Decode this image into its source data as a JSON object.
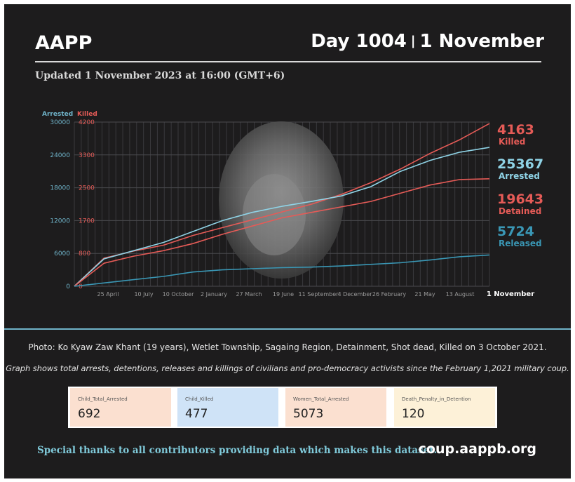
{
  "header": {
    "org": "AAPP",
    "day_label": "Day 1004",
    "separator": "|",
    "date_label": "1 November",
    "updated": "Updated 1 November 2023 at 16:00 (GMT+6)"
  },
  "chart_data": {
    "type": "line",
    "x_labels": [
      "25 April",
      "10 July",
      "10 October",
      "2 January",
      "27 March",
      "19 June",
      "11 September",
      "4 December",
      "26 February",
      "21 May",
      "13 August",
      "1 November"
    ],
    "left_axis": {
      "label": "Arrested",
      "ticks": [
        0,
        6000,
        12000,
        18000,
        24000,
        30000
      ],
      "ylim": [
        0,
        30000
      ]
    },
    "right_axis": {
      "label": "Killed",
      "ticks": [
        0,
        800,
        1700,
        2500,
        3300,
        4200
      ],
      "ylim": [
        0,
        4200
      ]
    },
    "series": [
      {
        "name": "Killed",
        "final_value": "4163",
        "color": "#e55b57",
        "axis": "right",
        "values": [
          0,
          720,
          900,
          1050,
          1300,
          1500,
          1700,
          1900,
          2100,
          2350,
          2650,
          3000,
          3400,
          3750,
          4163
        ]
      },
      {
        "name": "Arrested",
        "final_value": "25367",
        "color": "#8fd3e6",
        "axis": "left",
        "values": [
          0,
          5000,
          6500,
          8000,
          10000,
          12000,
          13500,
          14600,
          15500,
          16500,
          18200,
          21000,
          23000,
          24500,
          25367
        ]
      },
      {
        "name": "Detained",
        "final_value": "19643",
        "color": "#e55b57",
        "axis": "left",
        "values": [
          0,
          4200,
          5500,
          6500,
          7800,
          9500,
          11000,
          12500,
          13500,
          14500,
          15500,
          17000,
          18500,
          19500,
          19643
        ]
      },
      {
        "name": "Released",
        "final_value": "5724",
        "color": "#3a97b5",
        "axis": "left",
        "values": [
          0,
          600,
          1200,
          1800,
          2600,
          3000,
          3200,
          3400,
          3500,
          3700,
          4000,
          4300,
          4800,
          5400,
          5724
        ]
      }
    ]
  },
  "caption": "Photo: Ko Kyaw Zaw Khant (19 years), Wetlet Township, Sagaing Region, Detainment, Shot dead, Killed on 3 October 2021.",
  "note": "Graph shows total arrests, detentions, releases and killings of civilians and pro-democracy activists since the February 1,2021 military coup.",
  "cards": [
    {
      "label": "Child_Total_Arrested",
      "value": "692",
      "color": "#fbe0d0"
    },
    {
      "label": "Child_Killed",
      "value": "477",
      "color": "#cfe3f7"
    },
    {
      "label": "Women_Total_Arrested",
      "value": "5073",
      "color": "#fbe0d0"
    },
    {
      "label": "Death_Penalty_in_Detention",
      "value": "120",
      "color": "#fdf1d8"
    }
  ],
  "footer": {
    "thanks": "Special thanks to all contributors providing data which makes this dataset.",
    "url": "coup.aappb.org"
  }
}
